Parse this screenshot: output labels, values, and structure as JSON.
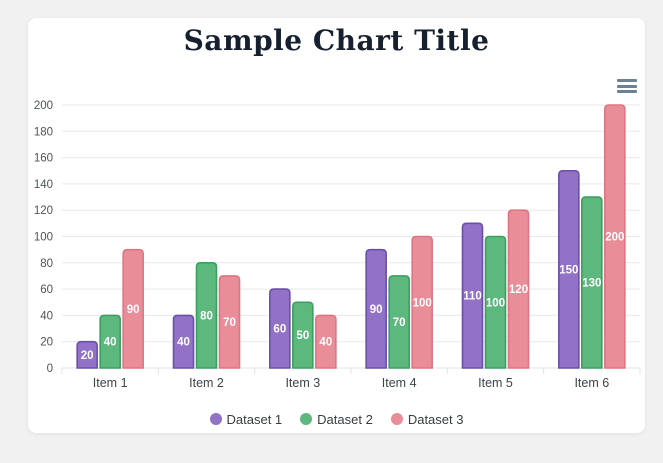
{
  "title": "Sample Chart Title",
  "toolbar": {
    "menu_icon": "hamburger-menu"
  },
  "colors": {
    "page_background": "#f1f1f1",
    "card_background": "#ffffff",
    "title_text": "#16202e",
    "grid_line": "#e9e9e9",
    "axis_line": "#dfe3e6",
    "axis_label": "#4b5457",
    "datalabel_text": "#ffffff",
    "menu_icon": "#6e8192",
    "legend_text": "#373d3f"
  },
  "chart_data": {
    "type": "bar",
    "title": "Sample Chart Title",
    "categories": [
      "Item 1",
      "Item 2",
      "Item 3",
      "Item 4",
      "Item 5",
      "Item 6"
    ],
    "series": [
      {
        "name": "Dataset 1",
        "color": "#9272c7",
        "border": "#6b4fa8",
        "values": [
          20,
          40,
          60,
          90,
          110,
          150
        ]
      },
      {
        "name": "Dataset 2",
        "color": "#5cb87d",
        "border": "#3c9f62",
        "values": [
          40,
          80,
          50,
          70,
          100,
          130
        ]
      },
      {
        "name": "Dataset 3",
        "color": "#e98d99",
        "border": "#dd7584",
        "values": [
          90,
          70,
          40,
          100,
          120,
          200
        ]
      }
    ],
    "ylim": [
      0,
      200
    ],
    "yticks": [
      0,
      20,
      40,
      60,
      80,
      100,
      120,
      140,
      160,
      180,
      200
    ],
    "xlabel": "",
    "ylabel": "",
    "grid": true,
    "legend_position": "bottom",
    "datalabels": "centered-white"
  }
}
